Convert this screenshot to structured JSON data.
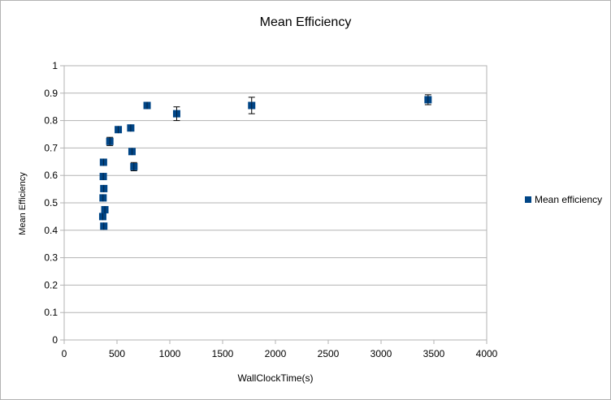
{
  "chart_data": {
    "type": "scatter",
    "title": "Mean Efficiency",
    "xlabel": "WallClockTime(s)",
    "ylabel": "Mean Efficiency",
    "xlim": [
      0,
      4000
    ],
    "ylim": [
      0,
      1
    ],
    "x_ticks": [
      "0",
      "500",
      "1000",
      "1500",
      "2000",
      "2500",
      "3000",
      "3500",
      "4000"
    ],
    "y_ticks": [
      "0",
      "0.1",
      "0.2",
      "0.3",
      "0.4",
      "0.5",
      "0.6",
      "0.7",
      "0.8",
      "0.9",
      "1"
    ],
    "grid": true,
    "legend_position": "right",
    "marker_color": "#004586",
    "series": [
      {
        "name": "Mean efficiency",
        "points": [
          {
            "x": 365,
            "y": 0.45,
            "err": 0.01
          },
          {
            "x": 375,
            "y": 0.415,
            "err": 0.01
          },
          {
            "x": 385,
            "y": 0.475,
            "err": 0.01
          },
          {
            "x": 368,
            "y": 0.518,
            "err": 0.01
          },
          {
            "x": 375,
            "y": 0.552,
            "err": 0.01
          },
          {
            "x": 370,
            "y": 0.596,
            "err": 0.01
          },
          {
            "x": 372,
            "y": 0.648,
            "err": 0.01
          },
          {
            "x": 432,
            "y": 0.724,
            "err": 0.015
          },
          {
            "x": 512,
            "y": 0.767,
            "err": 0.008
          },
          {
            "x": 630,
            "y": 0.773,
            "err": 0.008
          },
          {
            "x": 642,
            "y": 0.687,
            "err": 0.008
          },
          {
            "x": 660,
            "y": 0.632,
            "err": 0.015
          },
          {
            "x": 785,
            "y": 0.855,
            "err": 0.01
          },
          {
            "x": 1065,
            "y": 0.825,
            "err": 0.025
          },
          {
            "x": 1775,
            "y": 0.855,
            "err": 0.03
          },
          {
            "x": 3445,
            "y": 0.876,
            "err": 0.018
          }
        ]
      }
    ]
  }
}
